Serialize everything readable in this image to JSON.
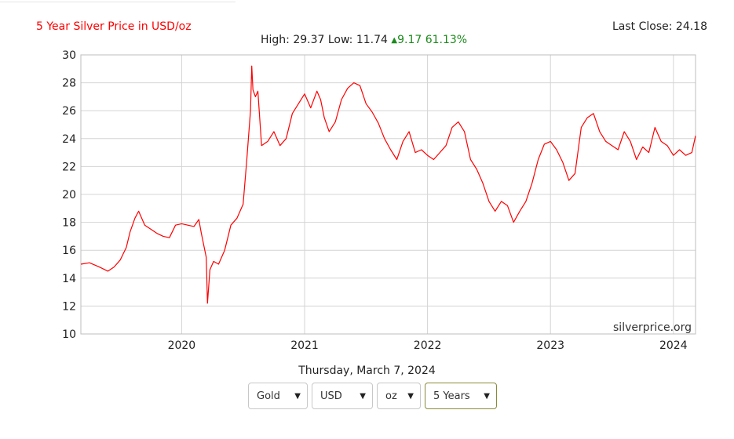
{
  "header": {
    "title": "5 Year Silver Price in USD/oz",
    "last_close": "Last Close: 24.18",
    "stats_prefix": "High: 29.37 Low: 11.74",
    "change": "9.17 61.13%"
  },
  "chart_data": {
    "type": "line",
    "title": "5 Year Silver Price in USD/oz",
    "xlabel": "",
    "ylabel": "",
    "xlim": [
      2019.18,
      2024.18
    ],
    "ylim": [
      10,
      30
    ],
    "y_ticks": [
      10,
      12,
      14,
      16,
      18,
      20,
      22,
      24,
      26,
      28,
      30
    ],
    "x_ticks": [
      2020,
      2021,
      2022,
      2023,
      2024
    ],
    "x_tick_labels": [
      "2020",
      "2021",
      "2022",
      "2023",
      "2024"
    ],
    "grid": true,
    "watermark": "silverprice.org",
    "series": [
      {
        "name": "",
        "color": "#ff0000",
        "x": [
          2019.18,
          2019.25,
          2019.33,
          2019.4,
          2019.45,
          2019.5,
          2019.55,
          2019.58,
          2019.62,
          2019.65,
          2019.7,
          2019.75,
          2019.8,
          2019.85,
          2019.9,
          2019.95,
          2020.0,
          2020.05,
          2020.1,
          2020.14,
          2020.16,
          2020.2,
          2020.21,
          2020.23,
          2020.26,
          2020.3,
          2020.35,
          2020.4,
          2020.45,
          2020.5,
          2020.53,
          2020.56,
          2020.57,
          2020.58,
          2020.6,
          2020.62,
          2020.65,
          2020.7,
          2020.75,
          2020.8,
          2020.85,
          2020.9,
          2020.95,
          2021.0,
          2021.05,
          2021.1,
          2021.13,
          2021.16,
          2021.2,
          2021.25,
          2021.3,
          2021.35,
          2021.4,
          2021.45,
          2021.5,
          2021.55,
          2021.6,
          2021.65,
          2021.7,
          2021.75,
          2021.8,
          2021.85,
          2021.9,
          2021.95,
          2022.0,
          2022.05,
          2022.1,
          2022.15,
          2022.2,
          2022.25,
          2022.3,
          2022.35,
          2022.4,
          2022.45,
          2022.5,
          2022.55,
          2022.6,
          2022.65,
          2022.7,
          2022.75,
          2022.8,
          2022.85,
          2022.9,
          2022.95,
          2023.0,
          2023.05,
          2023.1,
          2023.15,
          2023.2,
          2023.25,
          2023.3,
          2023.35,
          2023.4,
          2023.45,
          2023.5,
          2023.55,
          2023.6,
          2023.65,
          2023.7,
          2023.75,
          2023.8,
          2023.85,
          2023.9,
          2023.95,
          2024.0,
          2024.05,
          2024.1,
          2024.15,
          2024.18
        ],
        "values": [
          15.0,
          15.1,
          14.8,
          14.5,
          14.8,
          15.3,
          16.2,
          17.3,
          18.3,
          18.8,
          17.8,
          17.5,
          17.2,
          17.0,
          16.9,
          17.8,
          17.9,
          17.8,
          17.7,
          18.2,
          17.2,
          15.5,
          12.2,
          14.6,
          15.2,
          15.0,
          16.0,
          17.8,
          18.3,
          19.3,
          22.5,
          26.0,
          29.2,
          27.5,
          27.0,
          27.4,
          23.5,
          23.8,
          24.5,
          23.5,
          24.0,
          25.8,
          26.5,
          27.2,
          26.2,
          27.4,
          26.8,
          25.5,
          24.5,
          25.2,
          26.8,
          27.6,
          28.0,
          27.8,
          26.5,
          25.9,
          25.1,
          24.0,
          23.2,
          22.5,
          23.8,
          24.5,
          23.0,
          23.2,
          22.8,
          22.5,
          23.0,
          23.5,
          24.8,
          25.2,
          24.5,
          22.5,
          21.8,
          20.8,
          19.5,
          18.8,
          19.5,
          19.2,
          18.0,
          18.8,
          19.5,
          20.8,
          22.5,
          23.6,
          23.8,
          23.2,
          22.3,
          21.0,
          21.5,
          24.8,
          25.5,
          25.8,
          24.5,
          23.8,
          23.5,
          23.2,
          24.5,
          23.8,
          22.5,
          23.4,
          23.0,
          24.8,
          23.8,
          23.5,
          22.8,
          23.2,
          22.8,
          23.0,
          24.2
        ]
      }
    ]
  },
  "date_label": "Thursday, March 7, 2024",
  "controls": {
    "metal": "Gold",
    "currency": "USD",
    "unit": "oz",
    "period": "5 Years"
  }
}
